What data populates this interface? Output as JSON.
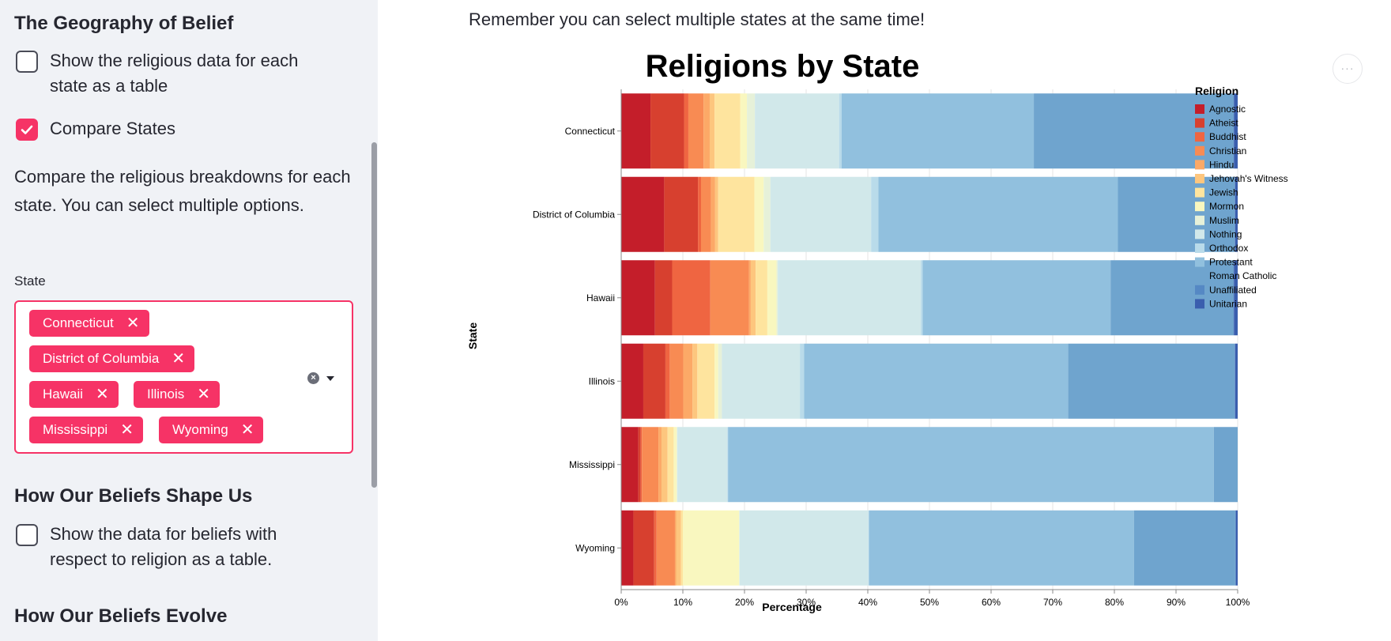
{
  "sidebar": {
    "section1_title": "The Geography of Belief",
    "checkbox_table_label": "Show the religious data for each state as a table",
    "checkbox_compare_label": "Compare States",
    "compare_description": "Compare the religious breakdowns for each state. You can select multiple options.",
    "state_label": "State",
    "selected_states": [
      "Connecticut",
      "District of Columbia",
      "Hawaii",
      "Illinois",
      "Mississippi",
      "Wyoming"
    ],
    "section2_title": "How Our Beliefs Shape Us",
    "checkbox_beliefs_label": "Show the data for beliefs with respect to religion as a table.",
    "section3_title": "How Our Beliefs Evolve"
  },
  "main": {
    "intro_text": "Remember you can select multiple states at the same time!",
    "menu_glyph": "···"
  },
  "chart_data": {
    "type": "bar",
    "orientation": "horizontal-stacked",
    "title": "Religions by State",
    "xlabel": "Percentage",
    "ylabel": "State",
    "xlim": [
      0,
      100
    ],
    "x_ticks": [
      "0%",
      "10%",
      "20%",
      "30%",
      "40%",
      "50%",
      "60%",
      "70%",
      "80%",
      "90%",
      "100%"
    ],
    "legend_title": "Religion",
    "legend_position": "right",
    "categories": [
      "Connecticut",
      "District of Columbia",
      "Hawaii",
      "Illinois",
      "Mississippi",
      "Wyoming"
    ],
    "series": [
      {
        "name": "Agnostic",
        "color": "#c41e2a",
        "values": [
          4.8,
          7,
          5.5,
          3.6,
          2.8,
          2
        ]
      },
      {
        "name": "Atheist",
        "color": "#d7402f",
        "values": [
          5.5,
          5.5,
          2.8,
          3.6,
          0.4,
          3.4
        ]
      },
      {
        "name": "Buddhist",
        "color": "#ef6541",
        "values": [
          0.7,
          0.5,
          6.2,
          0.7,
          0.2,
          0.4
        ]
      },
      {
        "name": "Christian",
        "color": "#f88b53",
        "values": [
          2.5,
          1.6,
          6.3,
          2.2,
          2.7,
          3
        ]
      },
      {
        "name": "Hindu",
        "color": "#fca967",
        "values": [
          1,
          0.7,
          0.3,
          1.5,
          0.5,
          0.2
        ]
      },
      {
        "name": "Jehovah's Witness",
        "color": "#fdc67e",
        "values": [
          0.8,
          0.5,
          0.8,
          0.8,
          1,
          0.8
        ]
      },
      {
        "name": "Jewish",
        "color": "#fee49e",
        "values": [
          4.2,
          5.9,
          1.9,
          2.8,
          1,
          0.3
        ]
      },
      {
        "name": "Mormon",
        "color": "#f9f7bf",
        "values": [
          1.1,
          1.5,
          1.5,
          0.6,
          0.5,
          9.2
        ]
      },
      {
        "name": "Muslim",
        "color": "#e6f1d9",
        "values": [
          1.3,
          1.1,
          0.2,
          0.6,
          0.1,
          0.1
        ]
      },
      {
        "name": "Nothing",
        "color": "#d1e8ea",
        "values": [
          13.8,
          16.4,
          23.3,
          12.7,
          8.2,
          21.1
        ]
      },
      {
        "name": "Orthodox",
        "color": "#b9dbea",
        "values": [
          0.4,
          1.2,
          0.3,
          0.7,
          0.1,
          0.1
        ]
      },
      {
        "name": "Protestant",
        "color": "#91c0de",
        "values": [
          31.5,
          39,
          30.6,
          43,
          79.6,
          43.4
        ]
      },
      {
        "name": "Roman Catholic",
        "color": "#6fa4ce",
        "values": [
          32.7,
          19,
          20,
          27.1,
          3.9,
          16.6
        ]
      },
      {
        "name": "Unaffiliated",
        "color": "#5588c4",
        "values": [
          0.1,
          0.1,
          0.1,
          0.1,
          0,
          0.1
        ]
      },
      {
        "name": "Unitarian",
        "color": "#3a5eae",
        "values": [
          0.6,
          0.4,
          0.6,
          0.4,
          0,
          0.3
        ]
      }
    ]
  }
}
